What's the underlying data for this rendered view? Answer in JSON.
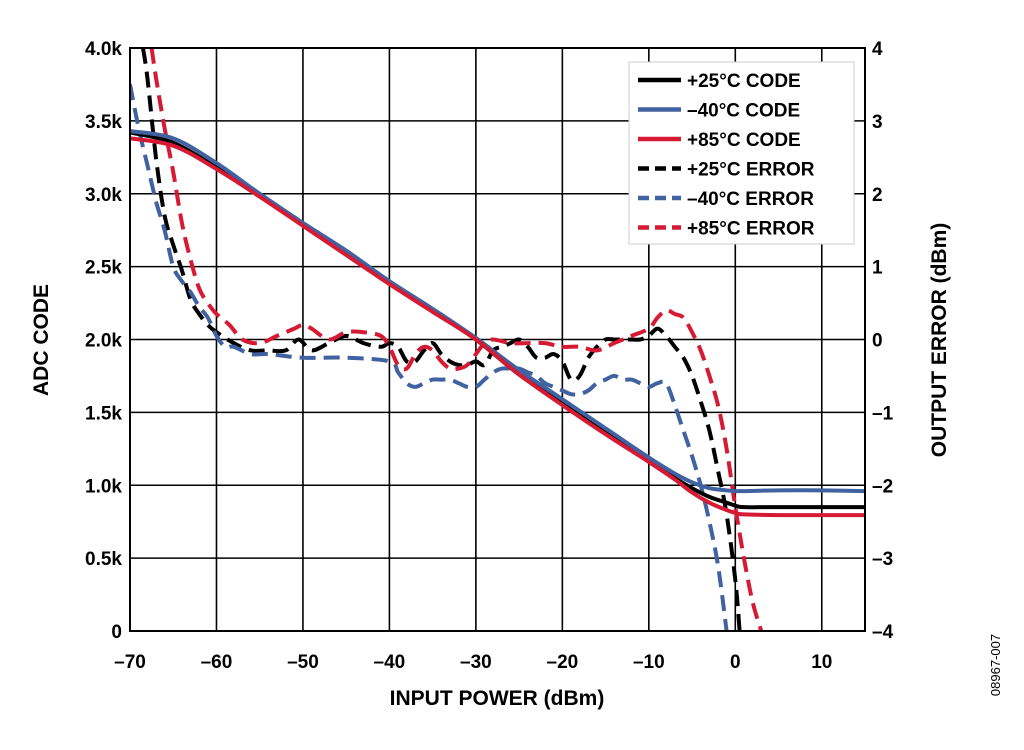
{
  "chart_data": {
    "type": "line",
    "xlabel": "INPUT POWER (dBm)",
    "ylabel_left": "ADC CODE",
    "ylabel_right": "OUTPUT ERROR (dBm)",
    "xlim": [
      -70,
      15
    ],
    "ylim_left": [
      0,
      4000
    ],
    "ylim_right": [
      -4,
      4
    ],
    "grid": true,
    "legend_position": "top-right",
    "x_ticks": [
      -70,
      -60,
      -50,
      -40,
      -30,
      -20,
      -10,
      0,
      10
    ],
    "x_tick_labels": [
      "–70",
      "–60",
      "–50",
      "–40",
      "–30",
      "–20",
      "–10",
      "0",
      "10"
    ],
    "y_left_ticks": [
      0,
      500,
      1000,
      1500,
      2000,
      2500,
      3000,
      3500,
      4000
    ],
    "y_left_tick_labels": [
      "0",
      "0.5k",
      "1.0k",
      "1.5k",
      "2.0k",
      "2.5k",
      "3.0k",
      "3.5k",
      "4.0k"
    ],
    "y_right_ticks": [
      -4,
      -3,
      -2,
      -1,
      0,
      1,
      2,
      3,
      4
    ],
    "y_right_tick_labels": [
      "–4",
      "–3",
      "–2",
      "–1",
      "0",
      "1",
      "2",
      "3",
      "4"
    ],
    "series": [
      {
        "name": "+25°C CODE",
        "axis": "left",
        "color": "#000000",
        "dash": false,
        "x": [
          -70,
          -65,
          -60,
          -55,
          -50,
          -45,
          -40,
          -35,
          -30,
          -25,
          -20,
          -15,
          -10,
          -7,
          -5,
          -3,
          -1,
          0,
          1,
          5,
          10,
          15
        ],
        "y": [
          3420,
          3350,
          3180,
          2990,
          2790,
          2590,
          2390,
          2200,
          2000,
          1760,
          1560,
          1360,
          1170,
          1050,
          980,
          920,
          880,
          860,
          850,
          850,
          850,
          850
        ]
      },
      {
        "name": "–40°C CODE",
        "axis": "left",
        "color": "#4062A0",
        "dash": false,
        "x": [
          -70,
          -65,
          -60,
          -55,
          -50,
          -45,
          -40,
          -35,
          -30,
          -25,
          -20,
          -15,
          -10,
          -7,
          -5,
          -3,
          -1,
          0,
          1,
          5,
          10,
          15
        ],
        "y": [
          3430,
          3380,
          3210,
          3000,
          2800,
          2610,
          2400,
          2210,
          2010,
          1790,
          1590,
          1390,
          1190,
          1080,
          1020,
          980,
          965,
          960,
          960,
          965,
          965,
          960
        ]
      },
      {
        "name": "+85°C CODE",
        "axis": "left",
        "color": "#D71A33",
        "dash": false,
        "x": [
          -70,
          -65,
          -60,
          -55,
          -50,
          -45,
          -40,
          -35,
          -30,
          -25,
          -20,
          -15,
          -10,
          -7,
          -5,
          -3,
          -1,
          0,
          1,
          5,
          10,
          15
        ],
        "y": [
          3380,
          3330,
          3170,
          2980,
          2780,
          2580,
          2380,
          2190,
          2000,
          1760,
          1550,
          1350,
          1160,
          1040,
          950,
          880,
          830,
          810,
          800,
          795,
          795,
          795
        ]
      },
      {
        "name": "+25°C ERROR",
        "axis": "right",
        "color": "#000000",
        "dash": true,
        "x": [
          -68.5,
          -68,
          -67,
          -66,
          -65,
          -64,
          -63,
          -62,
          -61,
          -60,
          -58,
          -56,
          -54,
          -52,
          -50.5,
          -49,
          -47,
          -45,
          -43,
          -41,
          -40,
          -39,
          -38,
          -37,
          -36,
          -35,
          -34,
          -33,
          -32,
          -31,
          -30,
          -29,
          -28,
          -27,
          -26,
          -25,
          -24,
          -23,
          -22,
          -21,
          -20,
          -19,
          -18,
          -17,
          -16,
          -15,
          -14,
          -13,
          -12,
          -11,
          -10,
          -9,
          -8,
          -7,
          -6,
          -5,
          -4,
          -3,
          -2,
          -1,
          0,
          0.5
        ],
        "y": [
          4.0,
          3.6,
          2.5,
          1.7,
          1.3,
          0.95,
          0.55,
          0.35,
          0.2,
          0.1,
          -0.05,
          -0.15,
          -0.15,
          -0.15,
          0.0,
          -0.15,
          -0.05,
          0.05,
          -0.05,
          -0.1,
          -0.05,
          -0.1,
          -0.3,
          -0.3,
          -0.15,
          -0.05,
          -0.2,
          -0.3,
          -0.35,
          -0.35,
          -0.3,
          -0.35,
          -0.15,
          -0.1,
          -0.05,
          0.0,
          -0.1,
          -0.25,
          -0.25,
          -0.2,
          -0.3,
          -0.55,
          -0.5,
          -0.25,
          -0.1,
          0.0,
          0.0,
          0.0,
          0.0,
          0.0,
          0.05,
          0.15,
          0.05,
          -0.1,
          -0.25,
          -0.5,
          -0.85,
          -1.25,
          -1.8,
          -2.4,
          -3.3,
          -4.0
        ]
      },
      {
        "name": "–40°C ERROR",
        "axis": "right",
        "color": "#4062A0",
        "dash": true,
        "x": [
          -70,
          -69,
          -68,
          -67,
          -66,
          -65,
          -64,
          -63,
          -62,
          -61,
          -60,
          -59,
          -58,
          -56,
          -54,
          -50,
          -45,
          -40,
          -39,
          -38,
          -37,
          -36,
          -35,
          -34,
          -33,
          -32,
          -31,
          -30,
          -29,
          -28,
          -27,
          -26,
          -25,
          -24,
          -23,
          -22,
          -21,
          -20,
          -19,
          -18,
          -17,
          -16,
          -15,
          -14,
          -13,
          -12,
          -11,
          -10,
          -9,
          -8,
          -7,
          -6,
          -5,
          -4,
          -3,
          -2,
          -1
        ],
        "y": [
          3.5,
          2.9,
          2.4,
          1.9,
          1.5,
          1.0,
          0.8,
          0.65,
          0.45,
          0.3,
          0.05,
          -0.1,
          -0.1,
          -0.2,
          -0.2,
          -0.25,
          -0.25,
          -0.3,
          -0.45,
          -0.6,
          -0.65,
          -0.6,
          -0.55,
          -0.55,
          -0.55,
          -0.6,
          -0.65,
          -0.65,
          -0.55,
          -0.45,
          -0.4,
          -0.4,
          -0.4,
          -0.45,
          -0.5,
          -0.6,
          -0.65,
          -0.7,
          -0.75,
          -0.75,
          -0.7,
          -0.6,
          -0.55,
          -0.5,
          -0.55,
          -0.55,
          -0.6,
          -0.65,
          -0.6,
          -0.6,
          -0.9,
          -1.25,
          -1.6,
          -2.0,
          -2.5,
          -3.1,
          -4.0
        ]
      },
      {
        "name": "+85°C ERROR",
        "axis": "right",
        "color": "#D71A33",
        "dash": true,
        "x": [
          -67.5,
          -67,
          -66,
          -65,
          -64,
          -63,
          -62,
          -61,
          -60,
          -58.5,
          -57,
          -55,
          -53,
          -51,
          -50,
          -49,
          -47,
          -45,
          -43,
          -41,
          -40,
          -39,
          -38,
          -37,
          -36,
          -35,
          -34,
          -33,
          -32,
          -31,
          -30,
          -29,
          -28,
          -26,
          -24,
          -22,
          -20,
          -18,
          -16,
          -14,
          -12,
          -10,
          -9,
          -8,
          -7,
          -6,
          -5,
          -4,
          -3,
          -2,
          -1,
          0,
          1,
          2,
          3
        ],
        "y": [
          4.0,
          3.6,
          2.9,
          2.3,
          1.6,
          1.1,
          0.7,
          0.5,
          0.35,
          0.2,
          0.0,
          -0.05,
          0.05,
          0.15,
          0.2,
          0.15,
          0.0,
          0.1,
          0.1,
          0.05,
          -0.1,
          -0.35,
          -0.4,
          -0.2,
          -0.1,
          -0.15,
          -0.3,
          -0.4,
          -0.4,
          -0.35,
          -0.2,
          -0.05,
          0.0,
          -0.05,
          -0.05,
          -0.05,
          -0.1,
          -0.1,
          -0.15,
          -0.05,
          0.05,
          0.15,
          0.3,
          0.4,
          0.35,
          0.3,
          0.1,
          -0.15,
          -0.5,
          -0.9,
          -1.5,
          -2.3,
          -3.0,
          -3.6,
          -4.0
        ]
      }
    ]
  },
  "figure_id": "08967-007"
}
